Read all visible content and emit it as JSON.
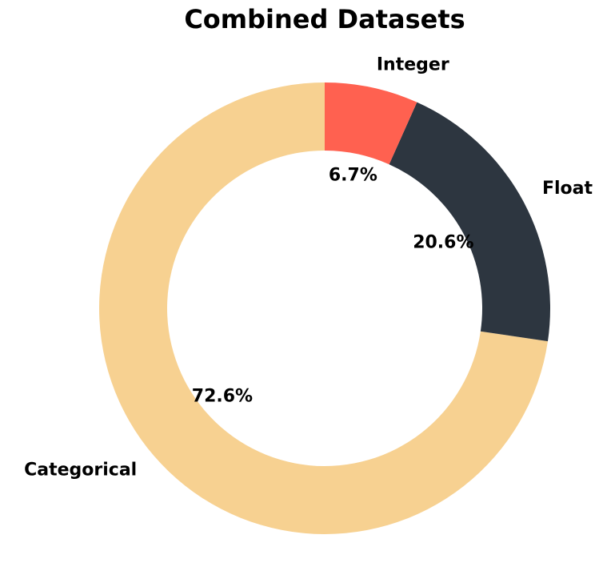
{
  "chart_data": {
    "type": "pie",
    "title": "Combined Datasets",
    "categories": [
      "Categorical",
      "Float",
      "Integer"
    ],
    "values": [
      72.6,
      20.6,
      6.7
    ],
    "percent_labels": [
      "72.6%",
      "20.6%",
      "6.7%"
    ],
    "colors": [
      "#f7d191",
      "#2d3640",
      "#ff6150"
    ],
    "donut": true,
    "start_angle_deg": 90,
    "direction": "counterclockwise",
    "legend": "none"
  }
}
